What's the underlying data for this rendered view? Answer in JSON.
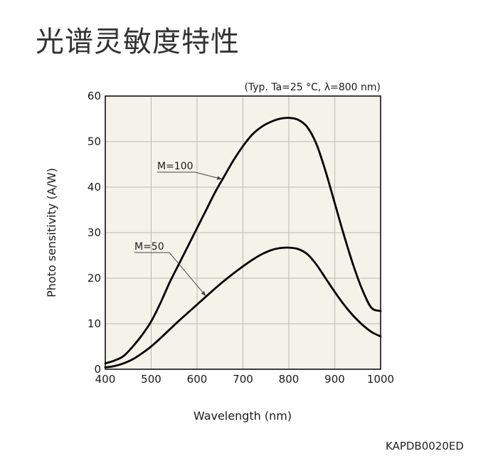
{
  "page": {
    "title": "光谱灵敏度特性",
    "figure_code": "KAPDB0020ED"
  },
  "colors": {
    "plot_background": "#f4f3ea",
    "grid": "#b8b8b0",
    "curve": "#000000"
  },
  "chart_data": {
    "type": "line",
    "condition_note": "(Typ. Ta=25 °C, λ=800 nm)",
    "xlabel": "Wavelength (nm)",
    "ylabel": "Photo sensitivity (A/W)",
    "xlim": [
      400,
      1000
    ],
    "ylim": [
      0,
      60
    ],
    "xticks": [
      400,
      500,
      600,
      700,
      800,
      900,
      1000
    ],
    "yticks": [
      0,
      10,
      20,
      30,
      40,
      50,
      60
    ],
    "grid": true,
    "series": [
      {
        "name": "M=100",
        "x": [
          400,
          420,
          440,
          460,
          480,
          500,
          520,
          540,
          560,
          580,
          600,
          620,
          640,
          660,
          680,
          700,
          720,
          740,
          760,
          780,
          800,
          820,
          840,
          860,
          880,
          900,
          920,
          940,
          960,
          980,
          1000
        ],
        "y": [
          1.3,
          1.9,
          2.9,
          5.0,
          7.5,
          10.5,
          14.5,
          19.0,
          23.0,
          27.0,
          31.0,
          35.0,
          39.0,
          42.5,
          46.0,
          49.0,
          51.5,
          53.2,
          54.3,
          55.0,
          55.2,
          54.8,
          53.2,
          49.5,
          43.5,
          36.5,
          29.5,
          23.0,
          17.5,
          13.5,
          12.8
        ]
      },
      {
        "name": "M=50",
        "x": [
          400,
          420,
          440,
          460,
          480,
          500,
          520,
          540,
          560,
          580,
          600,
          620,
          640,
          660,
          680,
          700,
          720,
          740,
          760,
          780,
          800,
          820,
          840,
          860,
          880,
          900,
          920,
          940,
          960,
          980,
          1000
        ],
        "y": [
          0.4,
          0.7,
          1.3,
          2.2,
          3.5,
          5.0,
          6.8,
          8.7,
          10.6,
          12.4,
          14.2,
          16.0,
          17.8,
          19.5,
          21.1,
          22.6,
          24.0,
          25.2,
          26.1,
          26.6,
          26.7,
          26.4,
          25.3,
          23.0,
          20.0,
          17.0,
          14.2,
          11.8,
          9.8,
          8.2,
          7.2
        ]
      }
    ]
  }
}
